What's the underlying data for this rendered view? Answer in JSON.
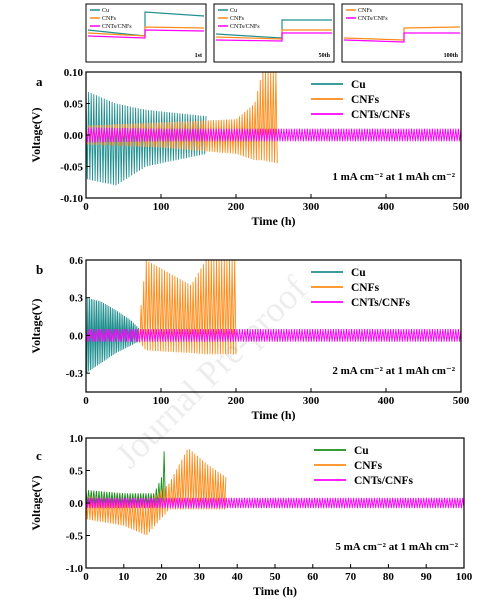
{
  "watermark": "Journal Pre-proof",
  "insets": [
    {
      "legend": [
        "Cu",
        "CNFs",
        "CNTs/CNFs"
      ],
      "cycle_label": "1st"
    },
    {
      "legend": [
        "Cu",
        "CNFs",
        "CNTs/CNFs"
      ],
      "cycle_label": "50th"
    },
    {
      "legend": [
        "CNFs",
        "CNTs/CNFs"
      ],
      "cycle_label": "100th"
    }
  ],
  "colors": {
    "Cu_ab": "#1f8f8f",
    "Cu_c": "#1a8f1a",
    "CNFs": "#ff8c1a",
    "CNTs/CNFs": "#ff00ff"
  },
  "chart_data": [
    {
      "panel": "a",
      "type": "line",
      "xlabel": "Time (h)",
      "ylabel": "Voltage(V)",
      "xlim": [
        0,
        500
      ],
      "ylim": [
        -0.1,
        0.1
      ],
      "xticks": [
        "0",
        "100",
        "200",
        "300",
        "400",
        "500"
      ],
      "yticks": [
        "-0.10",
        "-0.05",
        "0.00",
        "0.05",
        "0.10"
      ],
      "annotation": "1 mA cm⁻² at 1 mAh cm⁻²",
      "legend_position": "top-right",
      "series": [
        {
          "name": "Cu",
          "x": [
            0,
            40,
            80,
            120,
            160
          ],
          "y_upper": [
            0.07,
            0.05,
            0.04,
            0.035,
            0.03
          ],
          "y_lower": [
            -0.07,
            -0.08,
            -0.05,
            -0.04,
            -0.03
          ]
        },
        {
          "name": "CNFs",
          "x": [
            0,
            100,
            200,
            225,
            235,
            255
          ],
          "y_upper": [
            0.015,
            0.02,
            0.025,
            0.05,
            0.1,
            0.1
          ],
          "y_lower": [
            -0.015,
            -0.02,
            -0.03,
            -0.04,
            -0.04,
            -0.045
          ]
        },
        {
          "name": "CNTs/CNFs",
          "x": [
            0,
            100,
            300,
            500
          ],
          "y_upper": [
            0.012,
            0.01,
            0.01,
            0.01
          ],
          "y_lower": [
            -0.012,
            -0.01,
            -0.01,
            -0.01
          ]
        }
      ]
    },
    {
      "panel": "b",
      "type": "line",
      "xlabel": "Time (h)",
      "ylabel": "Voltage(V)",
      "xlim": [
        0,
        500
      ],
      "ylim": [
        -0.45,
        0.6
      ],
      "xticks": [
        "0",
        "100",
        "200",
        "300",
        "400",
        "500"
      ],
      "yticks": [
        "-0.3",
        "0.0",
        "0.3",
        "0.6"
      ],
      "annotation": "2 mA cm⁻² at 1 mAh cm⁻²",
      "legend_position": "top-right",
      "series": [
        {
          "name": "Cu",
          "x": [
            0,
            20,
            40,
            60,
            70
          ],
          "y_upper": [
            0.3,
            0.27,
            0.2,
            0.12,
            0.06
          ],
          "y_lower": [
            -0.3,
            -0.22,
            -0.14,
            -0.08,
            -0.05
          ]
        },
        {
          "name": "CNFs",
          "x": [
            70,
            80,
            140,
            160,
            200
          ],
          "y_upper": [
            0.05,
            0.6,
            0.4,
            0.6,
            0.6
          ],
          "y_lower": [
            -0.05,
            -0.12,
            -0.14,
            -0.15,
            -0.15
          ]
        },
        {
          "name": "CNTs/CNFs",
          "x": [
            0,
            500
          ],
          "y_upper": [
            0.05,
            0.05
          ],
          "y_lower": [
            -0.05,
            -0.05
          ]
        }
      ]
    },
    {
      "panel": "c",
      "type": "line",
      "xlabel": "Time (h)",
      "ylabel": "Voltage(V)",
      "xlim": [
        0,
        100
      ],
      "ylim": [
        -1.0,
        1.0
      ],
      "xticks": [
        "0",
        "10",
        "20",
        "30",
        "40",
        "50",
        "60",
        "70",
        "80",
        "90",
        "100"
      ],
      "yticks": [
        "-1.0",
        "-0.5",
        "0.0",
        "0.5",
        "1.0"
      ],
      "annotation": "5 mA cm⁻² at 1 mAh cm⁻²",
      "legend_position": "top-right",
      "series": [
        {
          "name": "Cu",
          "x": [
            0,
            10,
            18,
            20,
            21
          ],
          "y_upper": [
            0.2,
            0.15,
            0.15,
            0.4,
            1.0
          ],
          "y_lower": [
            -0.03,
            -0.03,
            -0.03,
            -0.03,
            -0.03
          ]
        },
        {
          "name": "CNFs",
          "x": [
            0,
            10,
            16,
            22,
            27,
            32,
            37
          ],
          "y_upper": [
            0.1,
            0.05,
            0.0,
            0.3,
            0.85,
            0.6,
            0.4
          ],
          "y_lower": [
            -0.25,
            -0.35,
            -0.5,
            -0.1,
            -0.1,
            -0.1,
            -0.1
          ]
        },
        {
          "name": "CNTs/CNFs",
          "x": [
            0,
            100
          ],
          "y_upper": [
            0.08,
            0.08
          ],
          "y_lower": [
            -0.08,
            -0.08
          ]
        }
      ]
    }
  ]
}
